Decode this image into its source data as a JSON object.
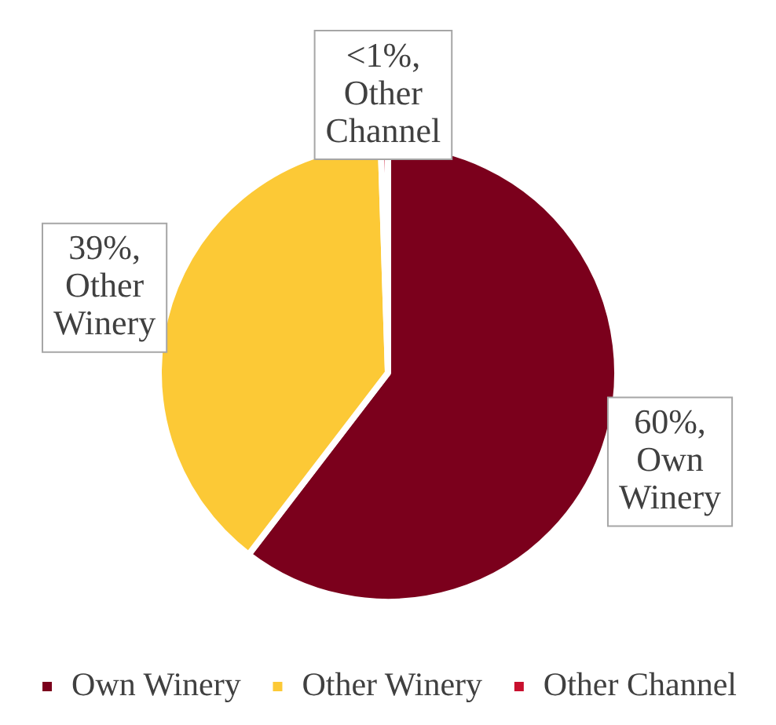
{
  "chart_data": {
    "type": "pie",
    "categories": [
      "Own Winery",
      "Other Winery",
      "Other Channel"
    ],
    "values": [
      60.4,
      39.1,
      0.5
    ],
    "colors": [
      "#7b001c",
      "#fcc936",
      "#c8102e"
    ],
    "value_labels": [
      "60%,",
      "39%,",
      "<1%,"
    ],
    "legend": "bottom"
  }
}
